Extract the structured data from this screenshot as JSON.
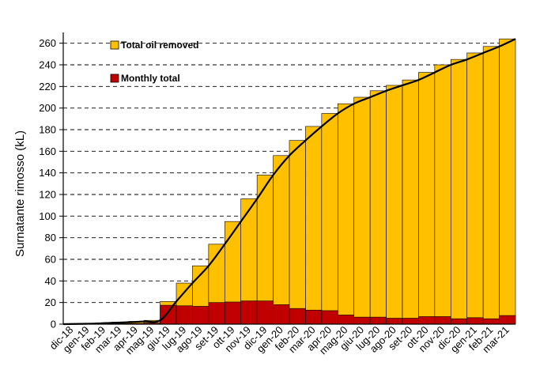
{
  "chart_data": {
    "type": "bar",
    "ylabel": "Surnatante rimosso (kL)",
    "xlabel": "",
    "title": "",
    "ylim": [
      0,
      265
    ],
    "yticks": [
      0,
      20,
      40,
      60,
      80,
      100,
      120,
      140,
      160,
      180,
      200,
      220,
      240,
      260
    ],
    "grid": "horizontal dashed",
    "legend_position": "top-left",
    "categories": [
      "dic-18",
      "gen-19",
      "feb-19",
      "mar-19",
      "apr-19",
      "mag-19",
      "giu-19",
      "lug-19",
      "ago-19",
      "set-19",
      "ott-19",
      "nov-19",
      "dic-19",
      "gen-20",
      "feb-20",
      "mar-20",
      "apr-20",
      "mag-20",
      "giu-20",
      "lug-20",
      "ago-20",
      "set-20",
      "ott-20",
      "nov-20",
      "dic-20",
      "gen-21",
      "feb-21",
      "mar-21"
    ],
    "series": [
      {
        "name": "Total oil removed",
        "color": "#FFC000",
        "values": [
          0.3,
          0.6,
          1.2,
          1.8,
          2.5,
          3.5,
          21,
          38,
          54,
          74,
          95,
          116,
          138,
          156,
          170,
          183,
          195,
          204,
          210,
          216,
          221,
          226,
          233,
          240,
          245,
          251,
          257,
          264
        ]
      },
      {
        "name": "Monthly total",
        "color": "#C00000",
        "values": [
          0.3,
          0.3,
          0.6,
          0.6,
          0.7,
          1.0,
          17.5,
          17,
          16.5,
          20,
          20.5,
          21.5,
          21.5,
          18,
          14.5,
          13,
          12.5,
          8.5,
          6.5,
          6.5,
          5.5,
          5.5,
          7,
          7,
          5,
          6,
          5,
          8
        ]
      }
    ]
  }
}
